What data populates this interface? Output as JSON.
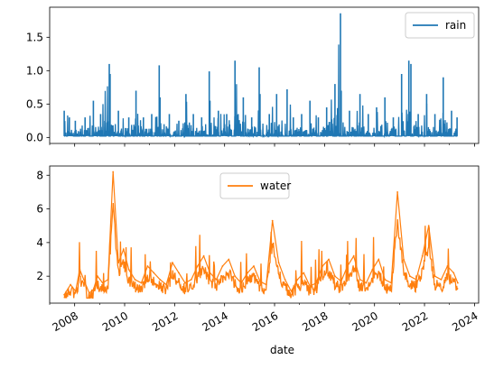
{
  "chart_data": [
    {
      "type": "line",
      "xlabel": "",
      "ylabel": "",
      "xlim": [
        "2007-01-01",
        "2024-03-01"
      ],
      "ylim": [
        -0.09,
        1.95
      ],
      "yticks": [
        0.0,
        0.5,
        1.0,
        1.5
      ],
      "yticklabels": [
        "0.0",
        "0.5",
        "1.0",
        "1.5"
      ],
      "legend": {
        "placement": "top-right"
      },
      "series": [
        {
          "name": "rain",
          "color": "#1f77b4",
          "baseline": 0.02,
          "x": [
            "2007-08-01",
            "2007-10-15",
            "2008-01-10",
            "2008-06-01",
            "2008-10-01",
            "2009-01-15",
            "2009-05-20",
            "2009-06-01",
            "2009-10-01",
            "2010-03-01",
            "2010-06-15",
            "2010-10-01",
            "2011-02-01",
            "2011-05-20",
            "2011-06-01",
            "2011-10-15",
            "2012-03-01",
            "2012-06-15",
            "2012-10-01",
            "2013-02-01",
            "2013-05-20",
            "2013-06-01",
            "2013-10-01",
            "2014-02-01",
            "2014-06-01",
            "2014-10-01",
            "2015-02-01",
            "2015-05-20",
            "2015-06-01",
            "2015-10-15",
            "2016-02-01",
            "2016-07-01",
            "2016-10-01",
            "2017-02-01",
            "2017-06-01",
            "2017-10-01",
            "2018-02-01",
            "2018-06-01",
            "2018-08-20",
            "2018-09-01",
            "2019-01-01",
            "2019-06-01",
            "2019-10-01",
            "2020-02-01",
            "2020-06-01",
            "2020-10-01",
            "2021-02-01",
            "2021-05-15",
            "2021-06-15",
            "2021-10-01",
            "2022-02-01",
            "2022-06-01",
            "2022-10-01",
            "2023-02-01",
            "2023-04-20"
          ],
          "values": [
            0.4,
            0.3,
            0.25,
            0.3,
            0.55,
            0.35,
            1.1,
            0.95,
            0.4,
            0.3,
            0.7,
            0.3,
            0.35,
            1.08,
            0.6,
            0.35,
            0.25,
            0.65,
            0.35,
            0.3,
            0.99,
            0.55,
            0.4,
            0.35,
            1.15,
            0.6,
            0.3,
            1.05,
            0.65,
            0.35,
            0.65,
            0.72,
            0.3,
            0.35,
            0.55,
            0.3,
            0.45,
            0.8,
            1.86,
            0.7,
            0.4,
            0.65,
            0.35,
            0.45,
            0.6,
            0.3,
            0.95,
            1.15,
            1.1,
            0.35,
            0.65,
            0.35,
            0.9,
            0.4,
            0.3
          ]
        }
      ]
    },
    {
      "type": "line",
      "xlabel": "date",
      "ylabel": "",
      "xlim": [
        "2007-01-01",
        "2024-03-01"
      ],
      "ylim": [
        0.4,
        8.55
      ],
      "yticks": [
        2,
        4,
        6,
        8
      ],
      "yticklabels": [
        "2",
        "4",
        "6",
        "8"
      ],
      "xticks": [
        "2008-01-01",
        "2010-01-01",
        "2012-01-01",
        "2014-01-01",
        "2016-01-01",
        "2018-01-01",
        "2020-01-01",
        "2022-01-01",
        "2024-01-01"
      ],
      "xticklabels": [
        "2008",
        "2010",
        "2012",
        "2014",
        "2016",
        "2018",
        "2020",
        "2022",
        "2024"
      ],
      "legend": {
        "placement": "top-center"
      },
      "series": [
        {
          "name": "water",
          "color": "#ff7f0e",
          "x": [
            "2007-08-01",
            "2007-11-01",
            "2008-01-15",
            "2008-03-15",
            "2008-06-01",
            "2008-08-01",
            "2008-10-01",
            "2008-12-01",
            "2009-02-15",
            "2009-05-01",
            "2009-07-15",
            "2009-10-01",
            "2009-12-15",
            "2010-03-01",
            "2010-06-01",
            "2010-09-01",
            "2010-12-01",
            "2011-03-01",
            "2011-06-01",
            "2011-09-01",
            "2011-12-01",
            "2012-03-01",
            "2012-06-01",
            "2012-09-01",
            "2012-12-01",
            "2013-03-01",
            "2013-06-01",
            "2013-09-01",
            "2013-12-01",
            "2014-03-01",
            "2014-06-01",
            "2014-09-01",
            "2014-12-01",
            "2015-03-01",
            "2015-06-01",
            "2015-09-01",
            "2015-12-01",
            "2016-03-01",
            "2016-06-01",
            "2016-09-01",
            "2016-12-01",
            "2017-03-01",
            "2017-06-01",
            "2017-09-01",
            "2017-12-01",
            "2018-03-01",
            "2018-06-01",
            "2018-09-01",
            "2018-12-01",
            "2019-03-01",
            "2019-06-01",
            "2019-09-01",
            "2019-12-01",
            "2020-03-01",
            "2020-06-01",
            "2020-09-01",
            "2020-12-01",
            "2021-03-01",
            "2021-06-01",
            "2021-09-01",
            "2021-12-01",
            "2022-03-01",
            "2022-06-01",
            "2022-09-01",
            "2022-12-01",
            "2023-03-01",
            "2023-05-01"
          ],
          "values": [
            0.9,
            1.5,
            1.1,
            2.4,
            1.6,
            1.0,
            1.2,
            2.0,
            1.6,
            1.8,
            8.2,
            2.8,
            3.6,
            2.4,
            1.8,
            1.6,
            2.6,
            2.2,
            1.8,
            1.5,
            2.8,
            2.2,
            1.6,
            1.8,
            2.6,
            3.2,
            2.2,
            1.8,
            2.6,
            3.0,
            2.0,
            1.6,
            2.2,
            2.6,
            1.7,
            1.5,
            5.3,
            2.8,
            1.8,
            1.1,
            1.8,
            2.2,
            1.4,
            1.6,
            2.6,
            3.0,
            2.0,
            1.7,
            2.6,
            3.2,
            1.8,
            1.6,
            2.4,
            3.0,
            1.8,
            1.6,
            7.0,
            3.0,
            2.0,
            1.8,
            3.2,
            5.0,
            2.0,
            1.8,
            2.6,
            2.2,
            1.6
          ]
        }
      ]
    }
  ]
}
